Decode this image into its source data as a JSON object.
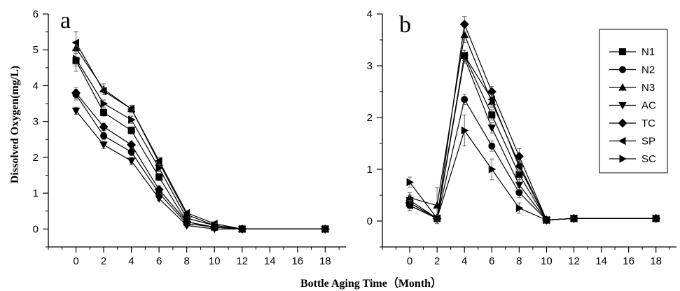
{
  "chart_data": [
    {
      "type": "line",
      "panel_label": "a",
      "ylabel": "Dissolved Oxygen(mg/L)",
      "xlabel": "Bottle Aging Time（Month）",
      "xlim": [
        -2,
        19.5
      ],
      "ylim": [
        -0.5,
        6
      ],
      "x_ticks": [
        0,
        2,
        4,
        6,
        8,
        10,
        12,
        14,
        16,
        18
      ],
      "y_ticks": [
        0,
        1,
        2,
        3,
        4,
        5,
        6
      ],
      "grid": false,
      "series": [
        {
          "name": "N1",
          "marker": "square",
          "x": [
            0,
            2,
            4,
            6,
            8,
            10,
            12,
            18
          ],
          "y": [
            4.7,
            3.25,
            2.75,
            1.45,
            0.2,
            0.05,
            0.0,
            0.0
          ],
          "err": [
            0.3,
            0.1,
            0.1,
            0.1,
            0.05,
            0.05,
            0,
            0
          ]
        },
        {
          "name": "N2",
          "marker": "circle",
          "x": [
            0,
            2,
            4,
            6,
            8,
            10,
            12,
            18
          ],
          "y": [
            3.75,
            2.6,
            2.15,
            1.0,
            0.15,
            0.05,
            0.0,
            0.0
          ],
          "err": [
            0.15,
            0.1,
            0.1,
            0.1,
            0.05,
            0.05,
            0,
            0
          ]
        },
        {
          "name": "N3",
          "marker": "triangle-up",
          "x": [
            0,
            2,
            4,
            6,
            8,
            10,
            12,
            18
          ],
          "y": [
            5.05,
            3.9,
            3.35,
            1.85,
            0.4,
            0.1,
            0.0,
            0.0
          ],
          "err": [
            0.45,
            0.15,
            0.1,
            0.1,
            0.1,
            0.1,
            0,
            0
          ]
        },
        {
          "name": "AC",
          "marker": "triangle-down",
          "x": [
            0,
            2,
            4,
            6,
            8,
            10,
            12,
            18
          ],
          "y": [
            3.3,
            2.35,
            1.9,
            0.85,
            0.1,
            0.0,
            0.0,
            0.0
          ],
          "err": [
            0.1,
            0.1,
            0.1,
            0.05,
            0.05,
            0,
            0,
            0
          ]
        },
        {
          "name": "TC",
          "marker": "diamond",
          "x": [
            0,
            2,
            4,
            6,
            8,
            10,
            12,
            18
          ],
          "y": [
            3.8,
            2.85,
            2.35,
            1.1,
            0.2,
            0.05,
            0.0,
            0.0
          ],
          "err": [
            0.15,
            0.1,
            0.1,
            0.1,
            0.05,
            0.05,
            0,
            0
          ]
        },
        {
          "name": "SP",
          "marker": "triangle-left",
          "x": [
            0,
            2,
            4,
            6,
            8,
            10,
            12,
            18
          ],
          "y": [
            5.2,
            3.85,
            3.35,
            1.9,
            0.45,
            0.15,
            0.0,
            0.0
          ],
          "err": [
            0.3,
            0.1,
            0.1,
            0.1,
            0.05,
            0.05,
            0,
            0
          ]
        },
        {
          "name": "SC",
          "marker": "triangle-right",
          "x": [
            0,
            2,
            4,
            6,
            8,
            10,
            12,
            18
          ],
          "y": [
            4.75,
            3.5,
            3.05,
            1.7,
            0.3,
            0.1,
            0.0,
            0.0
          ],
          "err": [
            0.2,
            0.1,
            0.1,
            0.1,
            0.05,
            0.05,
            0,
            0
          ]
        }
      ]
    },
    {
      "type": "line",
      "panel_label": "b",
      "xlim": [
        -2,
        19.5
      ],
      "ylim": [
        -0.5,
        4
      ],
      "x_ticks": [
        0,
        2,
        4,
        6,
        8,
        10,
        12,
        14,
        16,
        18
      ],
      "y_ticks": [
        0,
        1,
        2,
        3,
        4
      ],
      "grid": false,
      "legend_position": "top-right",
      "series": [
        {
          "name": "N1",
          "marker": "square",
          "x": [
            0,
            2,
            4,
            6,
            8,
            10,
            12,
            18
          ],
          "y": [
            0.35,
            0.05,
            3.2,
            2.05,
            0.9,
            0.02,
            0.05,
            0.05
          ],
          "err": [
            0.1,
            0.05,
            0.1,
            0.1,
            0.1,
            0.02,
            0.02,
            0.02
          ]
        },
        {
          "name": "N2",
          "marker": "circle",
          "x": [
            0,
            2,
            4,
            6,
            8,
            10,
            12,
            18
          ],
          "y": [
            0.3,
            0.05,
            2.35,
            1.45,
            0.55,
            0.02,
            0.05,
            0.05
          ],
          "err": [
            0.1,
            0.05,
            0.1,
            0.1,
            0.1,
            0.02,
            0.02,
            0.02
          ]
        },
        {
          "name": "N3",
          "marker": "triangle-up",
          "x": [
            0,
            2,
            4,
            6,
            8,
            10,
            12,
            18
          ],
          "y": [
            0.45,
            0.3,
            3.6,
            2.3,
            1.1,
            0.02,
            0.05,
            0.05
          ],
          "err": [
            0.1,
            0.35,
            0.15,
            0.1,
            0.15,
            0.02,
            0.02,
            0.02
          ]
        },
        {
          "name": "AC",
          "marker": "triangle-down",
          "x": [
            0,
            2,
            4,
            6,
            8,
            10,
            12,
            18
          ],
          "y": [
            0.4,
            0.05,
            3.15,
            1.8,
            0.7,
            0.02,
            0.05,
            0.05
          ],
          "err": [
            0.1,
            0.05,
            0.1,
            0.1,
            0.1,
            0.02,
            0.02,
            0.02
          ]
        },
        {
          "name": "TC",
          "marker": "diamond",
          "x": [
            0,
            2,
            4,
            6,
            8,
            10,
            12,
            18
          ],
          "y": [
            0.35,
            0.05,
            3.8,
            2.5,
            1.25,
            0.02,
            0.05,
            0.05
          ],
          "err": [
            0.15,
            0.05,
            0.15,
            0.1,
            0.15,
            0.02,
            0.02,
            0.02
          ]
        },
        {
          "name": "SP",
          "marker": "triangle-left",
          "x": [
            0,
            2,
            4,
            6,
            8,
            10,
            12,
            18
          ],
          "y": [
            0.3,
            0.05,
            3.2,
            2.35,
            1.05,
            0.02,
            0.05,
            0.05
          ],
          "err": [
            0.1,
            0.05,
            0.1,
            0.1,
            0.1,
            0.02,
            0.02,
            0.02
          ]
        },
        {
          "name": "SC",
          "marker": "triangle-right",
          "x": [
            0,
            2,
            4,
            6,
            8,
            10,
            12,
            18
          ],
          "y": [
            0.75,
            0.05,
            1.75,
            1.0,
            0.25,
            0.02,
            0.05,
            0.05
          ],
          "err": [
            0.1,
            0.05,
            0.3,
            0.2,
            0.1,
            0.02,
            0.02,
            0.02
          ]
        }
      ]
    }
  ]
}
